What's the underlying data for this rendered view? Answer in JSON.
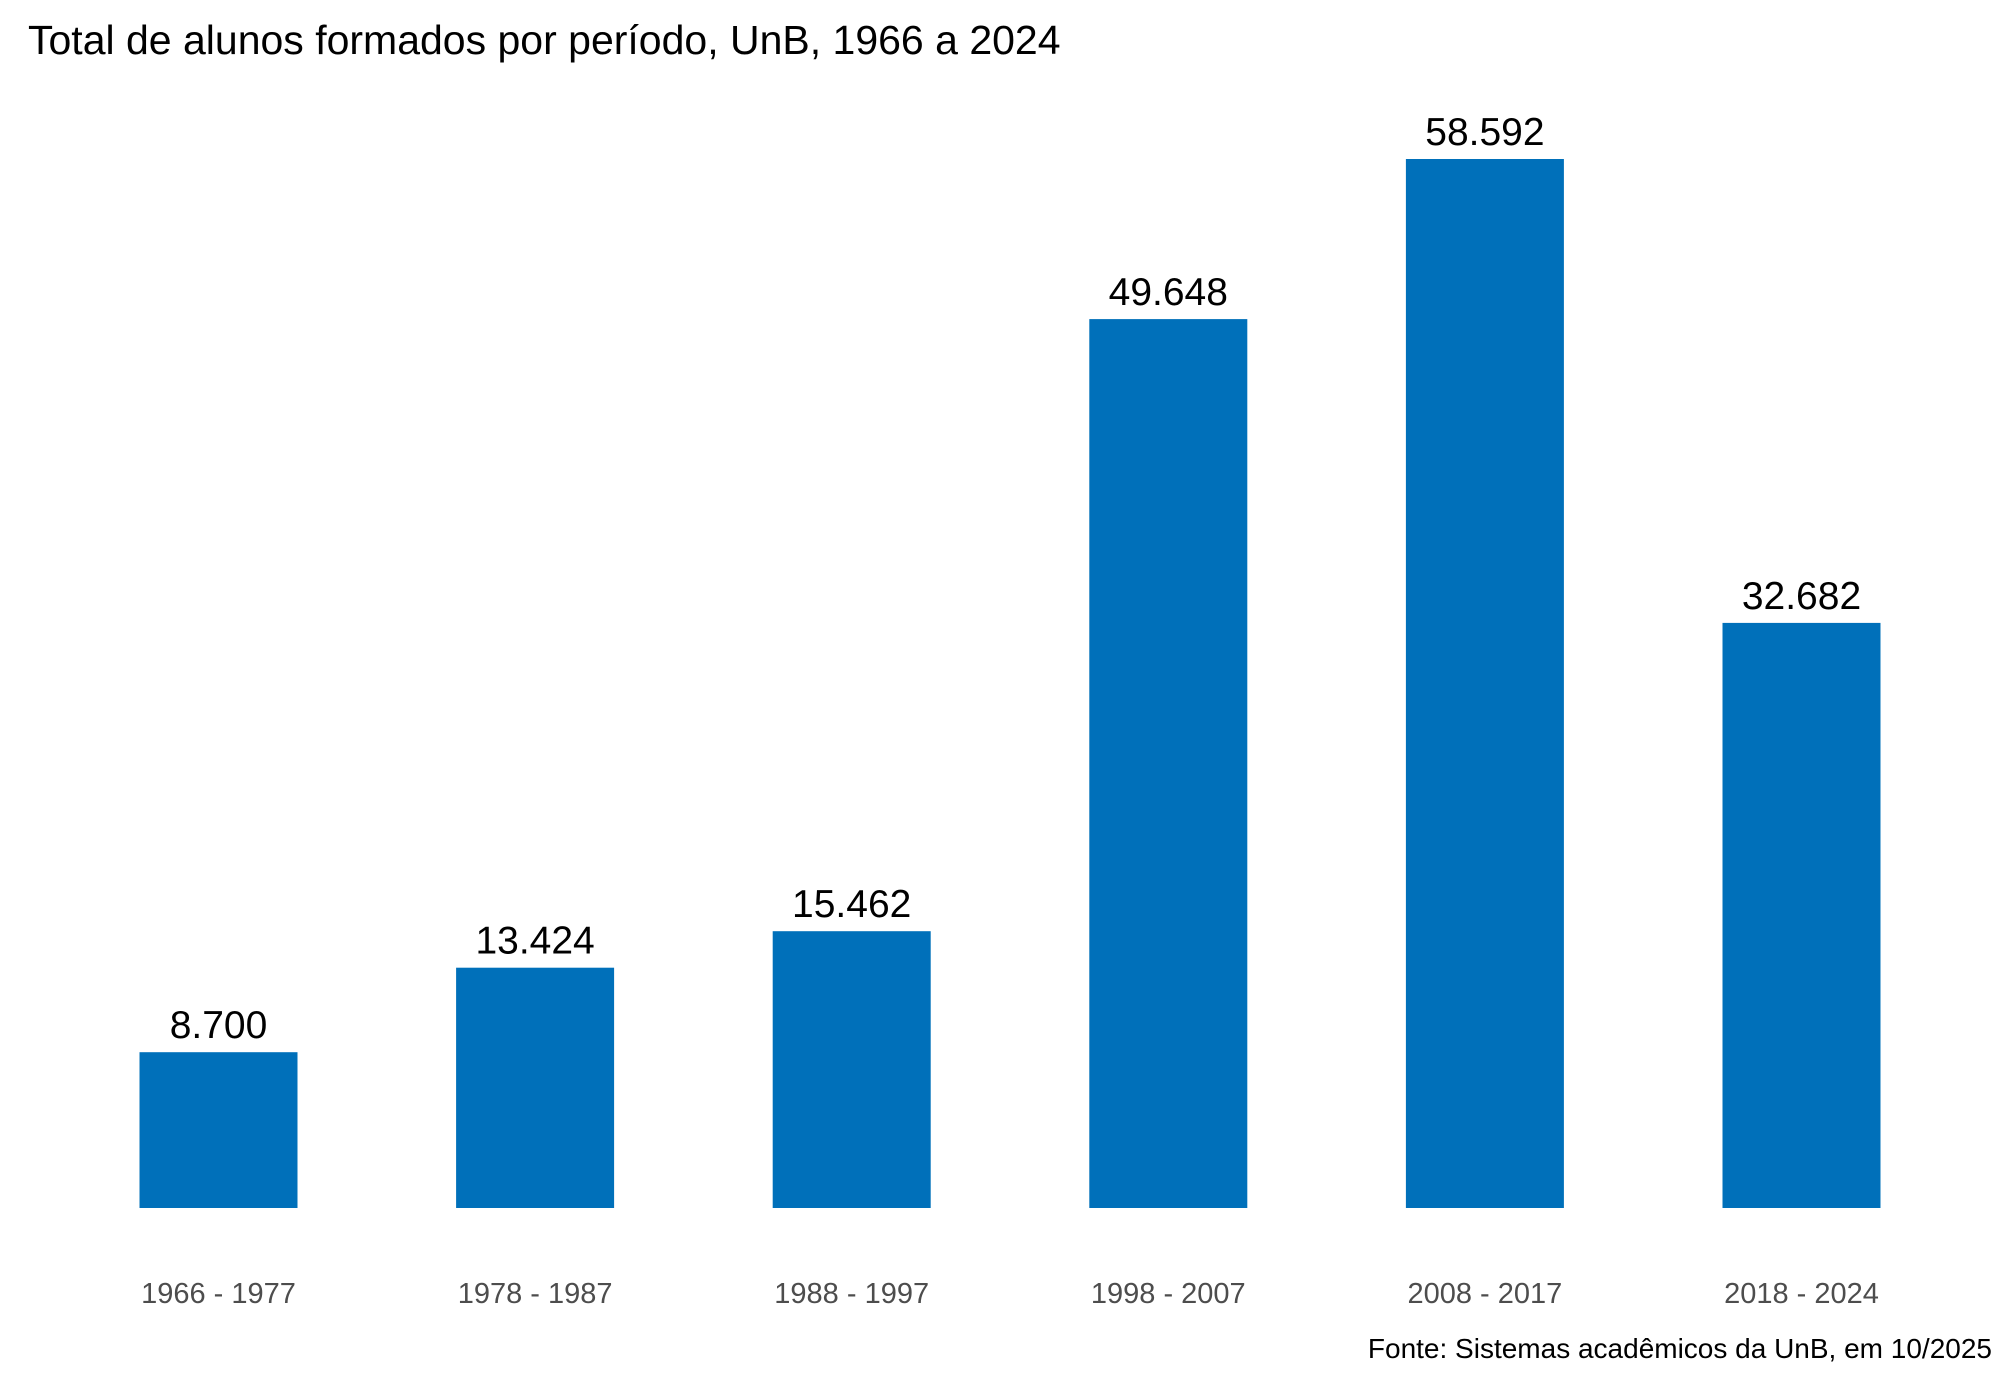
{
  "chart_data": {
    "type": "bar",
    "title": "Total de alunos formados por período, UnB, 1966 a 2024",
    "caption": "Fonte: Sistemas acadêmicos da UnB, em 10/2025",
    "categories": [
      "1966 - 1977",
      "1978 - 1987",
      "1988 - 1997",
      "1998 - 2007",
      "2008 - 2017",
      "2018 - 2024"
    ],
    "values": [
      8700,
      13424,
      15462,
      49648,
      58592,
      32682
    ],
    "value_labels": [
      "8.700",
      "13.424",
      "15.462",
      "49.648",
      "58.592",
      "32.682"
    ],
    "xlabel": "",
    "ylabel": "",
    "ylim": [
      0,
      58592
    ],
    "grid": false,
    "legend": "none",
    "bar_color": "#0070BA"
  }
}
